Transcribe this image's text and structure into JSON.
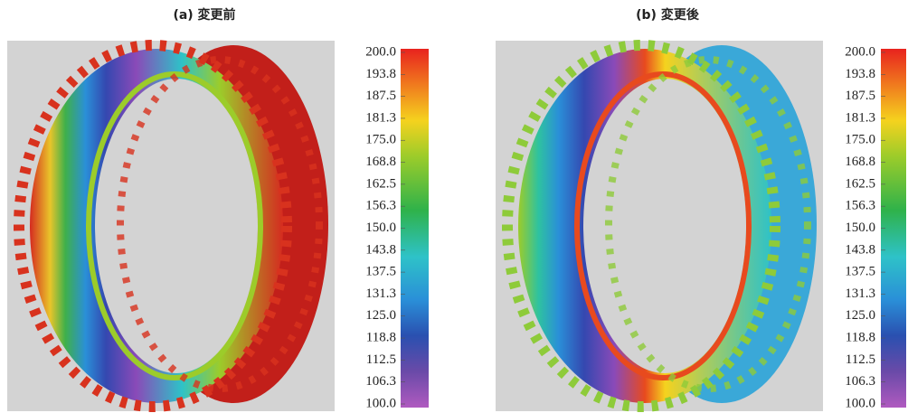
{
  "panels": [
    {
      "title": "(a)  変更前",
      "colorbar": {
        "labels": [
          "200.0",
          "193.8",
          "187.5",
          "181.3",
          "175.0",
          "168.8",
          "162.5",
          "156.3",
          "150.0",
          "143.8",
          "137.5",
          "131.3",
          "125.0",
          "118.8",
          "112.5",
          "106.3",
          "100.0"
        ]
      }
    },
    {
      "title": "(b)  変更後",
      "colorbar": {
        "labels": [
          "200.0",
          "193.8",
          "187.5",
          "181.3",
          "175.0",
          "168.8",
          "162.5",
          "156.3",
          "150.0",
          "143.8",
          "137.5",
          "131.3",
          "125.0",
          "118.8",
          "112.5",
          "106.3",
          "100.0"
        ]
      }
    }
  ]
}
